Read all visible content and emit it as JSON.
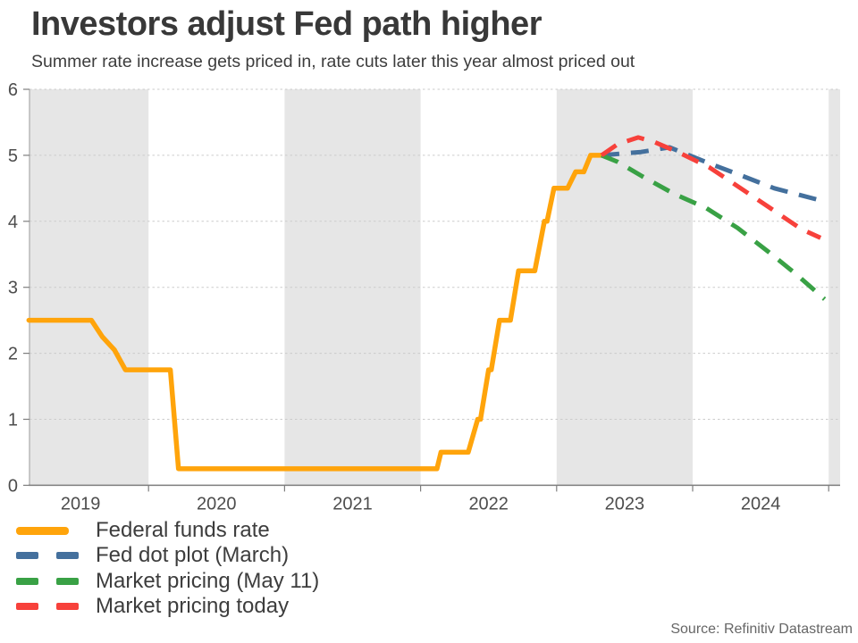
{
  "header": {
    "title": "Investors adjust Fed path higher",
    "subtitle": "Summer rate increase gets priced in, rate cuts later this year almost priced out"
  },
  "source_note": "Source: Refinitiv Datastream",
  "colors": {
    "federal_funds": "#FFA40B",
    "fed_dot_plot": "#44709D",
    "market_pricing_may11": "#39A145",
    "market_pricing_today": "#F7413B",
    "year_band": "#E6E6E6",
    "gridline": "#CBCBCB",
    "axis": "#7E7E7E",
    "tick_text": "#4D4D4D"
  },
  "chart_data": {
    "type": "line",
    "title": "Investors adjust Fed path higher",
    "subtitle": "Summer rate increase gets priced in, rate cuts later this year almost priced out",
    "xlabel": "",
    "ylabel": "",
    "x_axis": {
      "unit": "year",
      "range_years": [
        2019.12,
        2025.09
      ],
      "tick_boundary_years": [
        2020,
        2021,
        2022,
        2023,
        2024,
        2025
      ],
      "year_labels": [
        "2019",
        "2020",
        "2021",
        "2022",
        "2023",
        "2024"
      ]
    },
    "y_axis": {
      "range": [
        0,
        6
      ],
      "ticks": [
        0,
        1,
        2,
        3,
        4,
        5,
        6
      ],
      "gridlines": "dashed"
    },
    "shaded_year_bands": [
      2019,
      2021,
      2023,
      2025
    ],
    "legend_position": "below-left",
    "series": [
      {
        "name": "Federal funds rate",
        "color": "#FFA40B",
        "line_style": "solid",
        "points": [
          [
            2019.12,
            2.5
          ],
          [
            2019.58,
            2.5
          ],
          [
            2019.66,
            2.25
          ],
          [
            2019.75,
            2.05
          ],
          [
            2019.83,
            1.75
          ],
          [
            2020.16,
            1.75
          ],
          [
            2020.22,
            0.25
          ],
          [
            2022.12,
            0.25
          ],
          [
            2022.15,
            0.5
          ],
          [
            2022.35,
            0.5
          ],
          [
            2022.42,
            1.0
          ],
          [
            2022.44,
            1.0
          ],
          [
            2022.5,
            1.75
          ],
          [
            2022.52,
            1.75
          ],
          [
            2022.58,
            2.5
          ],
          [
            2022.66,
            2.5
          ],
          [
            2022.72,
            3.25
          ],
          [
            2022.84,
            3.25
          ],
          [
            2022.91,
            4.0
          ],
          [
            2022.93,
            4.0
          ],
          [
            2022.98,
            4.5
          ],
          [
            2023.08,
            4.5
          ],
          [
            2023.14,
            4.75
          ],
          [
            2023.2,
            4.75
          ],
          [
            2023.25,
            5.0
          ],
          [
            2023.33,
            5.0
          ]
        ]
      },
      {
        "name": "Fed dot plot (March)",
        "color": "#44709D",
        "line_style": "dashed",
        "points": [
          [
            2023.33,
            5.0
          ],
          [
            2023.62,
            5.05
          ],
          [
            2023.83,
            5.12
          ],
          [
            2024.12,
            4.88
          ],
          [
            2024.35,
            4.7
          ],
          [
            2024.6,
            4.5
          ],
          [
            2024.97,
            4.3
          ]
        ]
      },
      {
        "name": "Market pricing (May 11)",
        "color": "#39A145",
        "line_style": "dashed",
        "points": [
          [
            2023.33,
            5.0
          ],
          [
            2023.45,
            4.9
          ],
          [
            2023.63,
            4.68
          ],
          [
            2023.86,
            4.42
          ],
          [
            2024.1,
            4.2
          ],
          [
            2024.33,
            3.9
          ],
          [
            2024.55,
            3.55
          ],
          [
            2024.76,
            3.2
          ],
          [
            2024.97,
            2.82
          ]
        ]
      },
      {
        "name": "Market pricing today",
        "color": "#F7413B",
        "line_style": "dashed",
        "points": [
          [
            2023.33,
            5.0
          ],
          [
            2023.45,
            5.17
          ],
          [
            2023.6,
            5.27
          ],
          [
            2023.72,
            5.2
          ],
          [
            2023.89,
            5.05
          ],
          [
            2024.12,
            4.82
          ],
          [
            2024.34,
            4.52
          ],
          [
            2024.57,
            4.2
          ],
          [
            2024.8,
            3.88
          ],
          [
            2024.94,
            3.75
          ]
        ]
      }
    ]
  }
}
